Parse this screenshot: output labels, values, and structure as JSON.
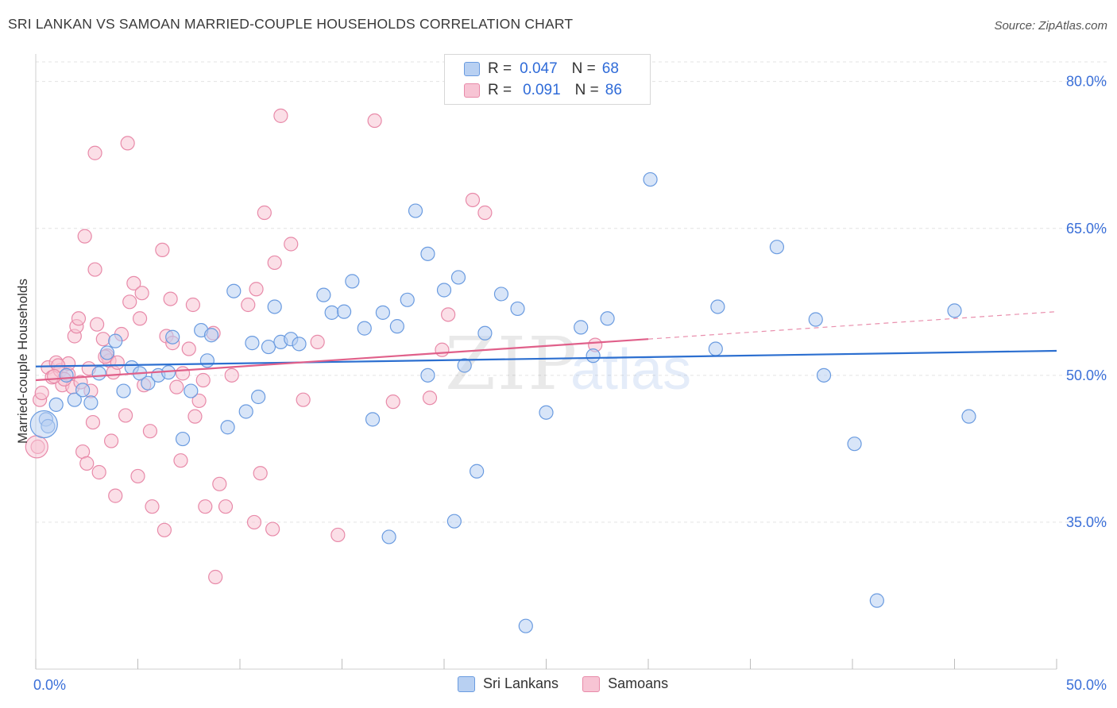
{
  "header": {
    "title": "SRI LANKAN VS SAMOAN MARRIED-COUPLE HOUSEHOLDS CORRELATION CHART",
    "source": "Source: ZipAtlas.com"
  },
  "legend": {
    "rows": [
      {
        "r_label": "R =",
        "r_value": "0.047",
        "n_label": "N =",
        "n_value": "68"
      },
      {
        "r_label": "R =",
        "r_value": "0.091",
        "n_label": "N =",
        "n_value": "86"
      }
    ]
  },
  "bottom_legend": {
    "items": [
      {
        "label": "Sri Lankans"
      },
      {
        "label": "Samoans"
      }
    ]
  },
  "watermark": {
    "zip": "ZIP",
    "atlas": "atlas"
  },
  "colors": {
    "blue_fill": "#b8d0f2",
    "blue_stroke": "#6a9be0",
    "blue_line": "#2c6fd0",
    "pink_fill": "#f7c4d4",
    "pink_stroke": "#e88aa9",
    "pink_line": "#e0608a",
    "grid": "#e3e3e3",
    "axis_label": "#3a6fd8"
  },
  "chart_data": {
    "type": "scatter",
    "title": "SRI LANKAN VS SAMOAN MARRIED-COUPLE HOUSEHOLDS CORRELATION CHART",
    "xlabel": "",
    "ylabel": "Married-couple Households",
    "xlim": [
      0,
      50
    ],
    "ylim": [
      20,
      82
    ],
    "x_tick_labels": [
      "0.0%",
      "50.0%"
    ],
    "y_ticks": [
      35,
      50,
      65,
      80
    ],
    "y_tick_labels": [
      "35.0%",
      "50.0%",
      "65.0%",
      "80.0%"
    ],
    "series": [
      {
        "name": "Sri Lankans",
        "R": 0.047,
        "N": 68,
        "trend": {
          "x0": 0,
          "y0": 50.9,
          "x1": 50,
          "y1": 52.5
        },
        "points": [
          [
            0.5,
            45.5
          ],
          [
            0.6,
            44.8
          ],
          [
            1.0,
            47.0
          ],
          [
            1.5,
            50.0
          ],
          [
            1.9,
            47.5
          ],
          [
            2.3,
            48.5
          ],
          [
            2.7,
            47.2
          ],
          [
            3.1,
            50.2
          ],
          [
            3.5,
            52.3
          ],
          [
            3.9,
            53.5
          ],
          [
            4.3,
            48.4
          ],
          [
            4.7,
            50.8
          ],
          [
            5.1,
            50.2
          ],
          [
            5.5,
            49.2
          ],
          [
            6.0,
            50.0
          ],
          [
            6.5,
            50.3
          ],
          [
            6.7,
            53.9
          ],
          [
            7.2,
            43.5
          ],
          [
            7.6,
            48.4
          ],
          [
            8.1,
            54.6
          ],
          [
            8.4,
            51.5
          ],
          [
            8.6,
            54.1
          ],
          [
            9.4,
            44.7
          ],
          [
            9.7,
            58.6
          ],
          [
            10.3,
            46.3
          ],
          [
            10.6,
            53.3
          ],
          [
            10.9,
            47.8
          ],
          [
            11.4,
            52.9
          ],
          [
            11.7,
            57.0
          ],
          [
            12.0,
            53.4
          ],
          [
            12.5,
            53.7
          ],
          [
            12.9,
            53.2
          ],
          [
            14.1,
            58.2
          ],
          [
            14.5,
            56.4
          ],
          [
            15.1,
            56.5
          ],
          [
            15.5,
            59.6
          ],
          [
            16.1,
            54.8
          ],
          [
            16.5,
            45.5
          ],
          [
            17.0,
            56.4
          ],
          [
            17.3,
            33.5
          ],
          [
            17.7,
            55.0
          ],
          [
            18.2,
            57.7
          ],
          [
            18.6,
            66.8
          ],
          [
            19.2,
            62.4
          ],
          [
            19.2,
            50.0
          ],
          [
            20.0,
            58.7
          ],
          [
            20.5,
            35.1
          ],
          [
            20.7,
            60.0
          ],
          [
            21.0,
            51.0
          ],
          [
            21.6,
            40.2
          ],
          [
            22.0,
            54.3
          ],
          [
            22.8,
            58.3
          ],
          [
            23.6,
            56.8
          ],
          [
            24.0,
            24.4
          ],
          [
            25.0,
            46.2
          ],
          [
            26.7,
            54.9
          ],
          [
            27.3,
            52.0
          ],
          [
            28.0,
            55.8
          ],
          [
            30.1,
            70.0
          ],
          [
            33.3,
            52.7
          ],
          [
            33.4,
            57.0
          ],
          [
            36.3,
            63.1
          ],
          [
            38.2,
            55.7
          ],
          [
            38.6,
            50.0
          ],
          [
            40.1,
            43.0
          ],
          [
            41.2,
            27.0
          ],
          [
            45.0,
            56.6
          ],
          [
            45.7,
            45.8
          ]
        ]
      },
      {
        "name": "Samoans",
        "R": 0.091,
        "N": 86,
        "trend": {
          "x0": 0,
          "y0": 49.5,
          "x1": 30,
          "y1": 53.7
        },
        "trend_extended": {
          "x0": 30,
          "y0": 53.7,
          "x1": 50,
          "y1": 56.5
        },
        "points": [
          [
            0.1,
            42.7
          ],
          [
            0.2,
            47.5
          ],
          [
            0.3,
            48.2
          ],
          [
            0.6,
            50.8
          ],
          [
            0.8,
            49.8
          ],
          [
            1.0,
            51.3
          ],
          [
            1.2,
            50.5
          ],
          [
            1.3,
            49.0
          ],
          [
            1.6,
            50.1
          ],
          [
            1.6,
            51.2
          ],
          [
            1.8,
            48.8
          ],
          [
            1.9,
            54.0
          ],
          [
            2.0,
            55.0
          ],
          [
            2.1,
            55.8
          ],
          [
            2.2,
            49.3
          ],
          [
            2.3,
            42.2
          ],
          [
            2.4,
            64.2
          ],
          [
            2.5,
            41.0
          ],
          [
            2.7,
            48.4
          ],
          [
            2.8,
            45.2
          ],
          [
            2.9,
            72.7
          ],
          [
            2.9,
            60.8
          ],
          [
            3.0,
            55.2
          ],
          [
            3.1,
            40.1
          ],
          [
            3.3,
            53.7
          ],
          [
            3.5,
            52.0
          ],
          [
            3.6,
            51.5
          ],
          [
            3.7,
            43.3
          ],
          [
            3.8,
            50.3
          ],
          [
            3.9,
            37.7
          ],
          [
            4.0,
            51.3
          ],
          [
            4.2,
            54.2
          ],
          [
            4.4,
            45.9
          ],
          [
            4.5,
            73.7
          ],
          [
            4.6,
            57.5
          ],
          [
            4.8,
            59.4
          ],
          [
            5.0,
            39.7
          ],
          [
            5.1,
            55.8
          ],
          [
            5.2,
            58.4
          ],
          [
            5.3,
            49.0
          ],
          [
            5.6,
            44.3
          ],
          [
            5.7,
            36.6
          ],
          [
            6.2,
            62.8
          ],
          [
            6.3,
            34.2
          ],
          [
            6.4,
            54.0
          ],
          [
            6.6,
            57.8
          ],
          [
            6.7,
            53.3
          ],
          [
            6.9,
            48.8
          ],
          [
            7.1,
            41.3
          ],
          [
            7.2,
            50.2
          ],
          [
            7.5,
            52.7
          ],
          [
            7.7,
            57.2
          ],
          [
            7.8,
            45.8
          ],
          [
            8.0,
            47.4
          ],
          [
            8.2,
            49.5
          ],
          [
            8.3,
            36.6
          ],
          [
            8.7,
            54.3
          ],
          [
            8.8,
            29.4
          ],
          [
            9.0,
            38.9
          ],
          [
            9.3,
            36.6
          ],
          [
            9.6,
            50.0
          ],
          [
            10.4,
            57.2
          ],
          [
            10.7,
            35.0
          ],
          [
            10.8,
            58.8
          ],
          [
            11.0,
            40.0
          ],
          [
            11.2,
            66.6
          ],
          [
            11.6,
            34.3
          ],
          [
            11.7,
            61.5
          ],
          [
            12.0,
            76.5
          ],
          [
            12.5,
            63.4
          ],
          [
            13.1,
            47.5
          ],
          [
            13.8,
            53.4
          ],
          [
            14.8,
            33.7
          ],
          [
            16.6,
            76.0
          ],
          [
            17.5,
            47.3
          ],
          [
            19.3,
            47.7
          ],
          [
            19.9,
            52.6
          ],
          [
            20.2,
            56.2
          ],
          [
            21.4,
            67.9
          ],
          [
            22.0,
            66.6
          ],
          [
            27.4,
            53.1
          ],
          [
            1.1,
            51.0
          ],
          [
            1.4,
            49.6
          ],
          [
            0.9,
            49.9
          ],
          [
            2.6,
            50.7
          ],
          [
            3.4,
            51.9
          ]
        ]
      }
    ]
  }
}
